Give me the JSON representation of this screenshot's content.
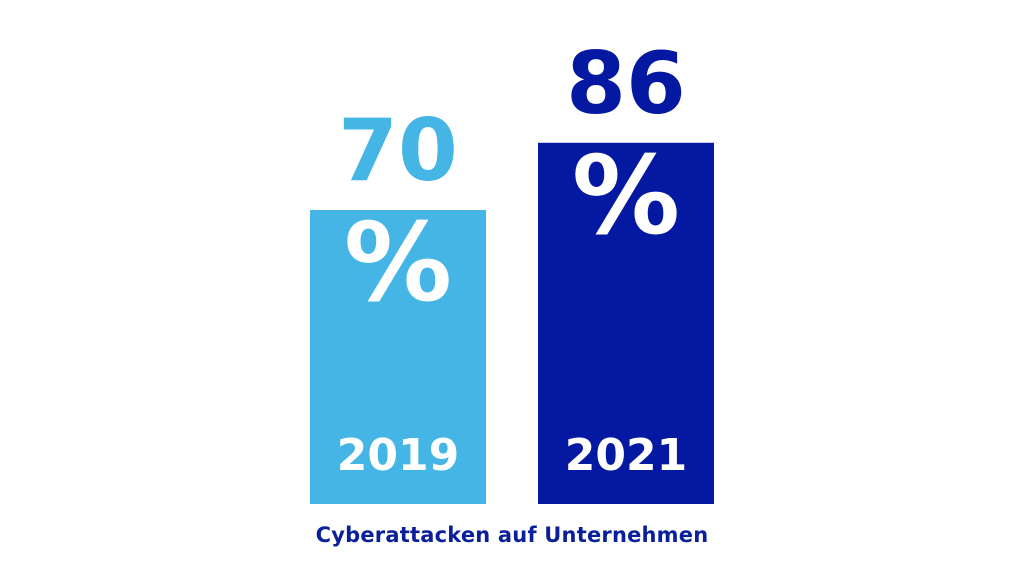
{
  "colors": {
    "light_blue": "#45b5e6",
    "dark_blue": "#0418a1",
    "caption": "#0a1f9a",
    "label_on_bar": "#ffffff"
  },
  "chart_data": {
    "type": "bar",
    "title": "",
    "xlabel": "Cyberattacken auf Unternehmen",
    "ylabel": "",
    "ylim": [
      0,
      100
    ],
    "grid": false,
    "legend": "none",
    "categories": [
      "2019",
      "2021"
    ],
    "values": [
      70,
      86
    ],
    "unit": "%",
    "value_number_labels": [
      "70",
      "86"
    ],
    "value_unit_labels": [
      "%",
      "%"
    ],
    "bar_colors": [
      "#45b5e6",
      "#0418a1"
    ]
  }
}
